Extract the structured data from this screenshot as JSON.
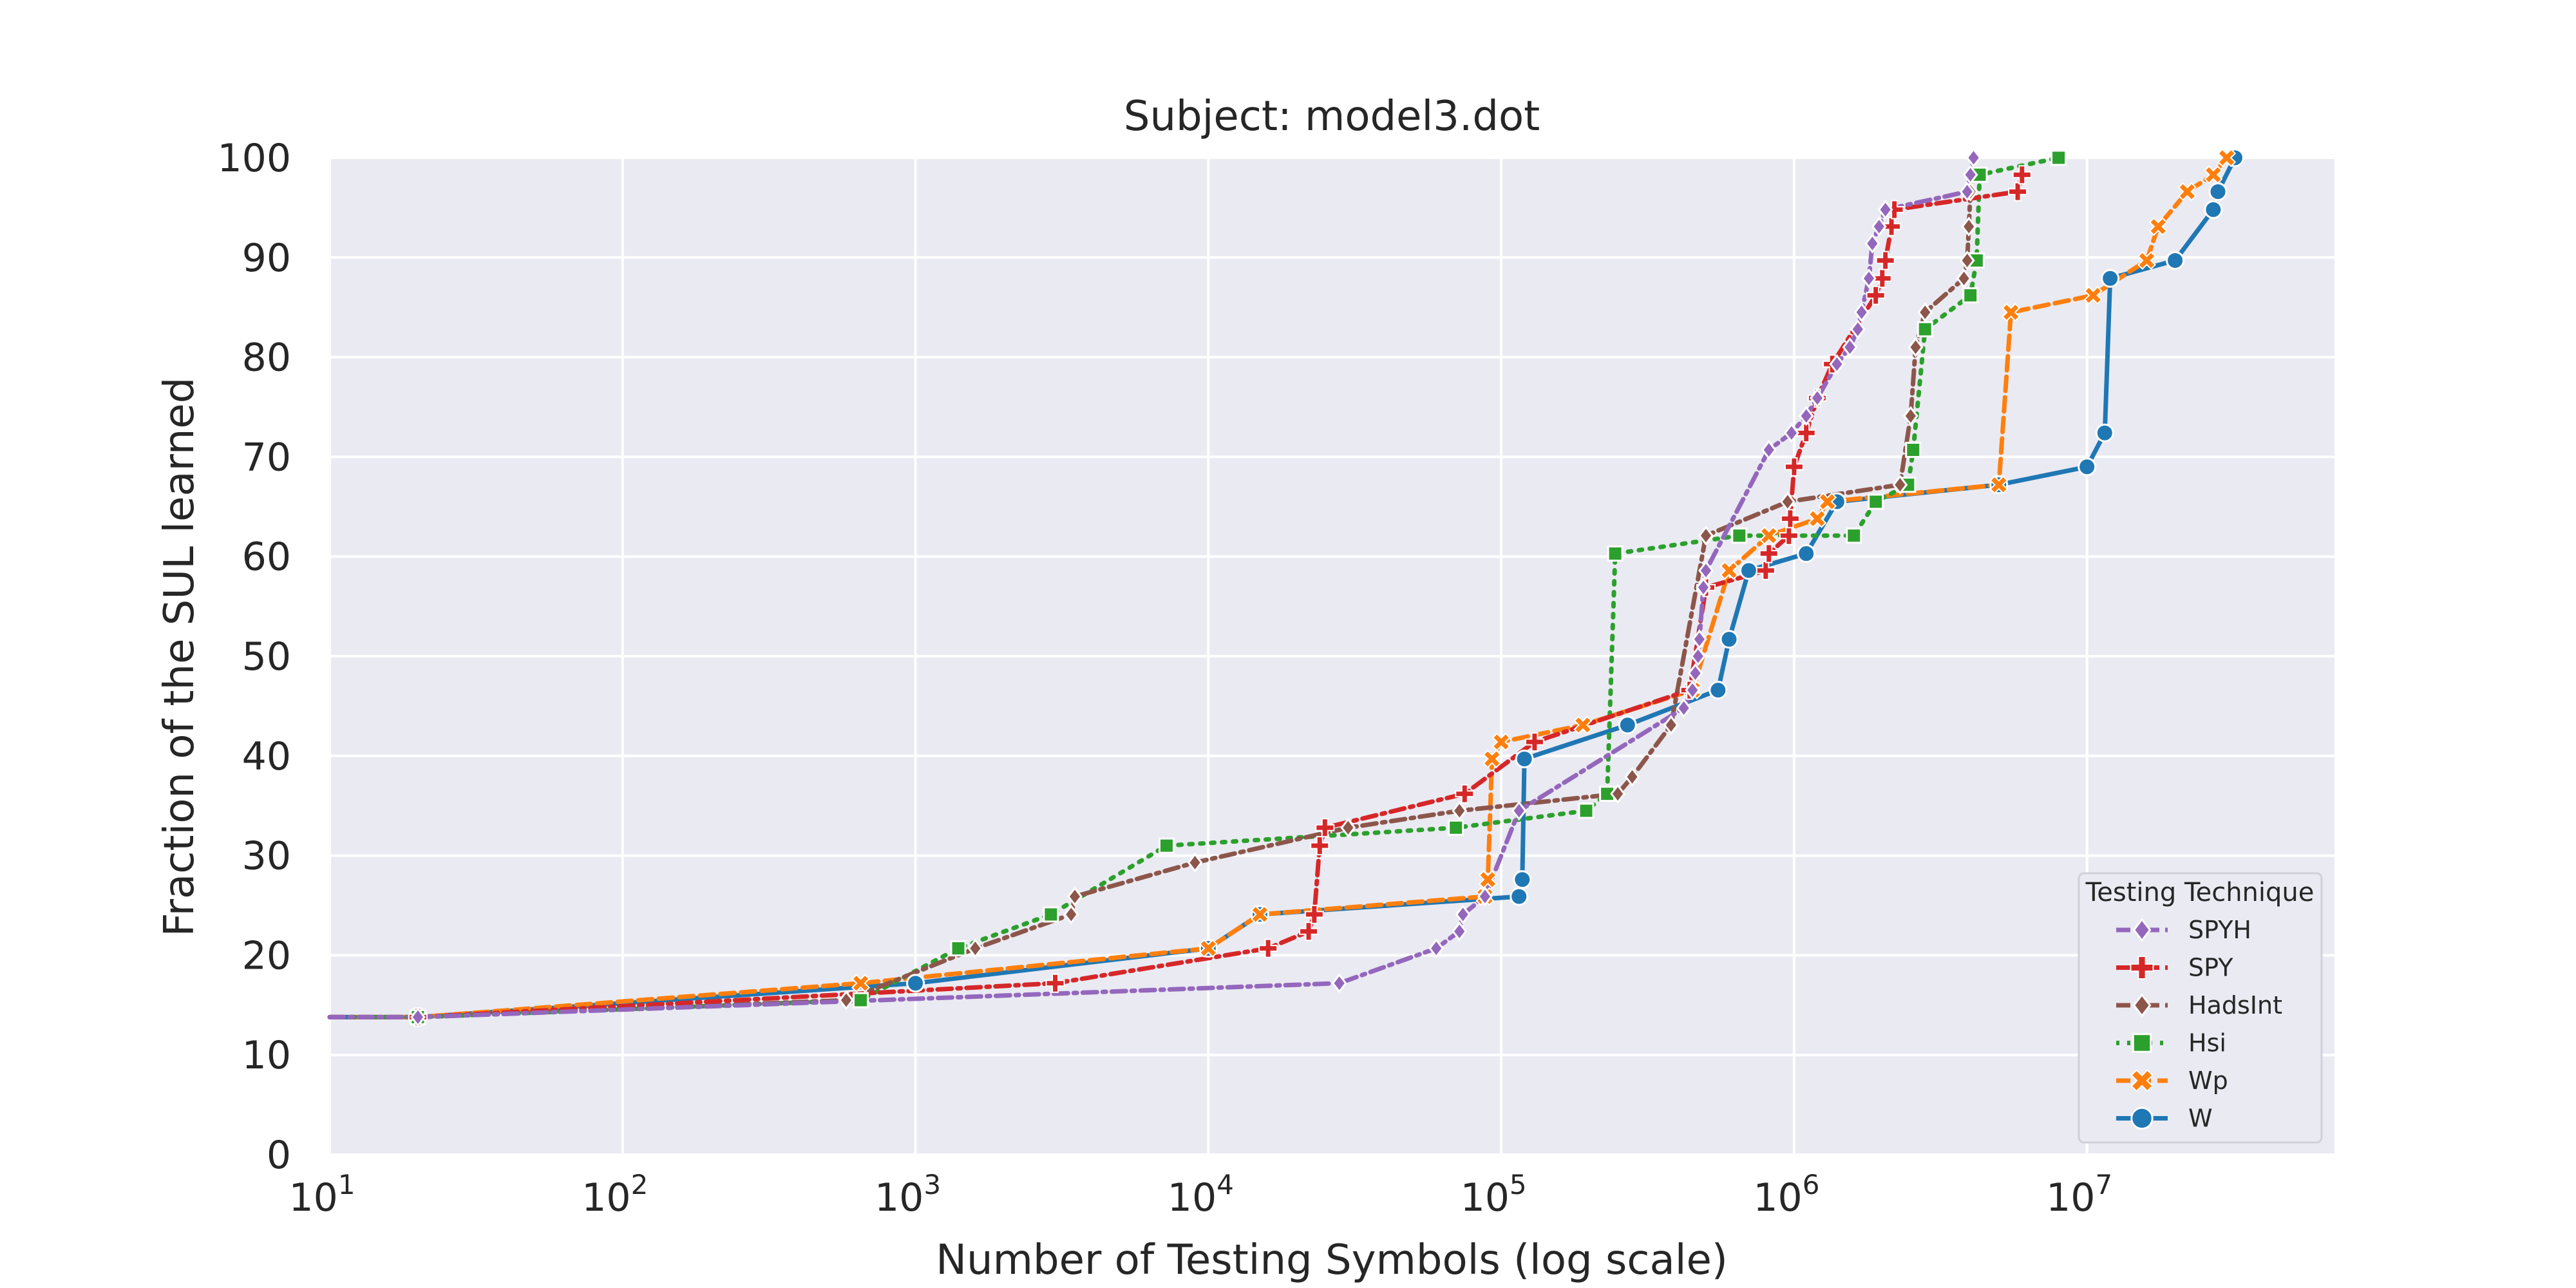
{
  "chart_data": {
    "type": "line",
    "title": "Subject: model3.dot",
    "xlabel": "Number of Testing Symbols (log scale)",
    "ylabel": "Fraction of the SUL learned",
    "xscale": "log",
    "xlim": [
      10,
      70000000
    ],
    "ylim": [
      0,
      100
    ],
    "x_ticks": [
      10,
      100,
      1000,
      10000,
      100000,
      1000000,
      10000000
    ],
    "x_tick_labels": [
      {
        "base": "10",
        "exp": "1"
      },
      {
        "base": "10",
        "exp": "2"
      },
      {
        "base": "10",
        "exp": "3"
      },
      {
        "base": "10",
        "exp": "4"
      },
      {
        "base": "10",
        "exp": "5"
      },
      {
        "base": "10",
        "exp": "6"
      },
      {
        "base": "10",
        "exp": "7"
      }
    ],
    "y_ticks": [
      0,
      10,
      20,
      30,
      40,
      50,
      60,
      70,
      80,
      90,
      100
    ],
    "y_tick_labels": [
      "0",
      "10",
      "20",
      "30",
      "40",
      "50",
      "60",
      "70",
      "80",
      "90",
      "100"
    ],
    "grid": true,
    "legend": {
      "title": "Testing Technique",
      "position": "bottom-right"
    },
    "series": [
      {
        "name": "SPYH",
        "color": "#9467bd",
        "dash": "dashdot",
        "marker": "diamond",
        "points": [
          [
            10,
            13.8
          ],
          [
            20,
            13.8
          ],
          [
            28000,
            17.2
          ],
          [
            60000,
            20.7
          ],
          [
            72000,
            22.4
          ],
          [
            74000,
            24.1
          ],
          [
            88000,
            25.9
          ],
          [
            115000,
            34.5
          ],
          [
            420000,
            44.8
          ],
          [
            450000,
            46.6
          ],
          [
            460000,
            48.3
          ],
          [
            470000,
            50
          ],
          [
            475000,
            51.7
          ],
          [
            490000,
            56.9
          ],
          [
            500000,
            58.6
          ],
          [
            820000,
            70.7
          ],
          [
            980000,
            72.4
          ],
          [
            1100000,
            74.1
          ],
          [
            1200000,
            75.9
          ],
          [
            1400000,
            79.3
          ],
          [
            1550000,
            81
          ],
          [
            1650000,
            82.8
          ],
          [
            1700000,
            84.5
          ],
          [
            1800000,
            87.9
          ],
          [
            1850000,
            91.4
          ],
          [
            1950000,
            93.1
          ],
          [
            2050000,
            94.8
          ],
          [
            3900000,
            96.6
          ],
          [
            4000000,
            98.3
          ],
          [
            4100000,
            100
          ]
        ]
      },
      {
        "name": "SPY",
        "color": "#d62728",
        "dash": "dashdot",
        "marker": "plus",
        "points": [
          [
            10,
            13.8
          ],
          [
            20,
            13.8
          ],
          [
            3000,
            17.2
          ],
          [
            16000,
            20.7
          ],
          [
            22000,
            22.4
          ],
          [
            23000,
            24.1
          ],
          [
            24000,
            31
          ],
          [
            25000,
            32.8
          ],
          [
            75000,
            36.2
          ],
          [
            130000,
            41.4
          ],
          [
            440000,
            46.6
          ],
          [
            500000,
            56.9
          ],
          [
            800000,
            58.6
          ],
          [
            820000,
            60.3
          ],
          [
            960000,
            62.1
          ],
          [
            970000,
            63.8
          ],
          [
            1000000,
            69
          ],
          [
            1100000,
            72.4
          ],
          [
            1200000,
            75.9
          ],
          [
            1350000,
            79.3
          ],
          [
            1900000,
            86.2
          ],
          [
            2000000,
            87.9
          ],
          [
            2050000,
            89.7
          ],
          [
            2150000,
            93.1
          ],
          [
            2200000,
            94.8
          ],
          [
            5800000,
            96.6
          ],
          [
            6000000,
            98.3
          ]
        ]
      },
      {
        "name": "HadsInt",
        "color": "#8c564b",
        "dash": "dashdot",
        "marker": "diamond",
        "points": [
          [
            10,
            13.8
          ],
          [
            20,
            13.8
          ],
          [
            580,
            15.5
          ],
          [
            1600,
            20.7
          ],
          [
            3400,
            24.1
          ],
          [
            3500,
            25.9
          ],
          [
            9000,
            29.3
          ],
          [
            30000,
            32.8
          ],
          [
            72000,
            34.5
          ],
          [
            250000,
            36.2
          ],
          [
            280000,
            37.9
          ],
          [
            380000,
            43.1
          ],
          [
            500000,
            62.1
          ],
          [
            950000,
            65.5
          ],
          [
            2300000,
            67.2
          ],
          [
            2500000,
            74.1
          ],
          [
            2600000,
            81
          ],
          [
            2800000,
            84.5
          ],
          [
            3800000,
            87.9
          ],
          [
            3900000,
            89.7
          ],
          [
            3950000,
            93.1
          ],
          [
            4000000,
            96.6
          ],
          [
            4100000,
            100
          ]
        ]
      },
      {
        "name": "Hsi",
        "color": "#2ca02c",
        "dash": "dotted",
        "marker": "square",
        "points": [
          [
            10,
            13.8
          ],
          [
            20,
            13.8
          ],
          [
            650,
            15.5
          ],
          [
            1400,
            20.7
          ],
          [
            2900,
            24.1
          ],
          [
            7200,
            31
          ],
          [
            70000,
            32.8
          ],
          [
            195000,
            34.5
          ],
          [
            230000,
            36.2
          ],
          [
            245000,
            60.3
          ],
          [
            650000,
            62.1
          ],
          [
            1600000,
            62.1
          ],
          [
            1900000,
            65.5
          ],
          [
            2450000,
            67.2
          ],
          [
            2550000,
            70.7
          ],
          [
            2800000,
            82.8
          ],
          [
            4000000,
            86.2
          ],
          [
            4200000,
            89.7
          ],
          [
            4300000,
            98.3
          ],
          [
            8000000,
            100
          ]
        ]
      },
      {
        "name": "Wp",
        "color": "#ff7f0e",
        "dash": "dashed",
        "marker": "x",
        "points": [
          [
            10,
            13.8
          ],
          [
            20,
            13.8
          ],
          [
            650,
            17.2
          ],
          [
            10000,
            20.7
          ],
          [
            15000,
            24.1
          ],
          [
            88000,
            25.9
          ],
          [
            90000,
            27.6
          ],
          [
            93000,
            39.7
          ],
          [
            100000,
            41.4
          ],
          [
            190000,
            43.1
          ],
          [
            450000,
            46.6
          ],
          [
            600000,
            58.6
          ],
          [
            820000,
            62.1
          ],
          [
            1200000,
            63.8
          ],
          [
            1300000,
            65.5
          ],
          [
            5000000,
            67.2
          ],
          [
            5500000,
            84.5
          ],
          [
            10500000,
            86.2
          ],
          [
            16000000,
            89.7
          ],
          [
            17500000,
            93.1
          ],
          [
            22000000,
            96.6
          ],
          [
            27000000,
            98.3
          ],
          [
            30000000,
            100
          ]
        ]
      },
      {
        "name": "W",
        "color": "#1f77b4",
        "dash": "solid",
        "marker": "circle",
        "points": [
          [
            10,
            13.8
          ],
          [
            20,
            13.8
          ],
          [
            1000,
            17.2
          ],
          [
            10000,
            20.7
          ],
          [
            15000,
            24.1
          ],
          [
            115000,
            25.9
          ],
          [
            118000,
            27.6
          ],
          [
            120000,
            39.7
          ],
          [
            270000,
            43.1
          ],
          [
            550000,
            46.6
          ],
          [
            600000,
            51.7
          ],
          [
            700000,
            58.6
          ],
          [
            1100000,
            60.3
          ],
          [
            1400000,
            65.5
          ],
          [
            5000000,
            67.2
          ],
          [
            10000000,
            69
          ],
          [
            11500000,
            72.4
          ],
          [
            12000000,
            87.9
          ],
          [
            20000000,
            89.7
          ],
          [
            27000000,
            94.8
          ],
          [
            28000000,
            96.6
          ],
          [
            32000000,
            100
          ]
        ]
      }
    ]
  }
}
